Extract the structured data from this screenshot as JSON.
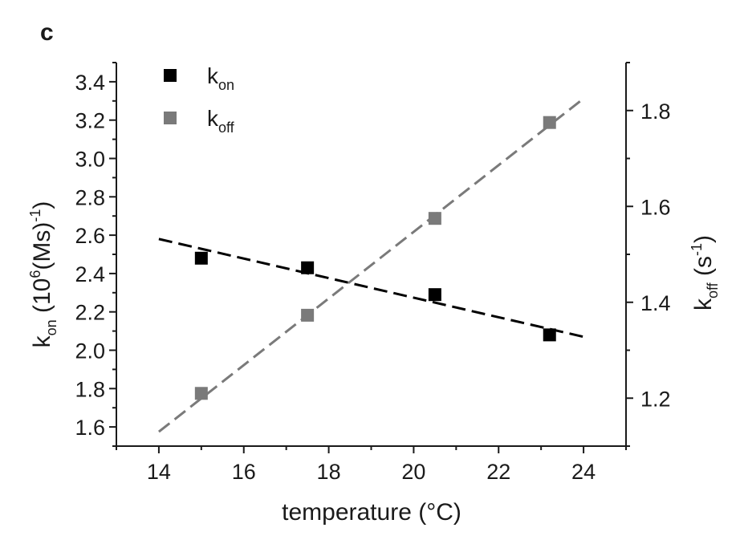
{
  "panel_label": "c",
  "chart_data": {
    "type": "scatter",
    "xlabel": "temperature (°C)",
    "ylabel_left": {
      "main": "k",
      "sub": "on",
      "tail": " (10",
      "sup": "6",
      "tail2": "(Ms)",
      "sup2": "-1",
      "end": ")"
    },
    "ylabel_right": {
      "main": "k",
      "sub": "off",
      "tail": " (s",
      "sup": "-1",
      "end": ")"
    },
    "xlim": [
      13,
      25
    ],
    "ylim_left": [
      1.5,
      3.5
    ],
    "ylim_right": [
      1.1,
      1.9
    ],
    "x_ticks": [
      14,
      16,
      18,
      20,
      22,
      24
    ],
    "y_left_ticks": [
      "1.6",
      "1.8",
      "2.0",
      "2.2",
      "2.4",
      "2.6",
      "2.8",
      "3.0",
      "3.2",
      "3.4"
    ],
    "y_right_ticks": [
      "1.2",
      "1.4",
      "1.6",
      "1.8"
    ],
    "legend": {
      "placement": "top-left",
      "entries": [
        {
          "main": "k",
          "sub": "on",
          "color": "#000000"
        },
        {
          "main": "k",
          "sub": "off",
          "color": "#7a7a7a"
        }
      ]
    },
    "series": [
      {
        "key": "kon",
        "axis": "left",
        "color": "#000000",
        "x": [
          15.0,
          17.5,
          20.5,
          23.2
        ],
        "y": [
          2.48,
          2.43,
          2.29,
          2.08
        ],
        "fit": {
          "x": [
            14,
            24
          ],
          "y": [
            2.58,
            2.07
          ]
        }
      },
      {
        "key": "koff",
        "axis": "right",
        "color": "#7a7a7a",
        "x": [
          15.0,
          17.5,
          20.5,
          23.2
        ],
        "y": [
          1.21,
          1.373,
          1.575,
          1.775
        ],
        "fit": {
          "x": [
            14,
            24
          ],
          "y": [
            1.13,
            1.825
          ]
        }
      }
    ]
  }
}
